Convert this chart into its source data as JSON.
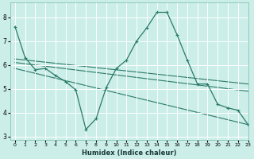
{
  "xlabel": "Humidex (Indice chaleur)",
  "bg_color": "#cceee8",
  "grid_color": "#ffffff",
  "line_color": "#2a7a6a",
  "xlim": [
    -0.5,
    23
  ],
  "ylim": [
    2.85,
    8.6
  ],
  "yticks": [
    3,
    4,
    5,
    6,
    7,
    8
  ],
  "xticks": [
    0,
    1,
    2,
    3,
    4,
    5,
    6,
    7,
    8,
    9,
    10,
    11,
    12,
    13,
    14,
    15,
    16,
    17,
    18,
    19,
    20,
    21,
    22,
    23
  ],
  "series_main": {
    "x": [
      0,
      1,
      2,
      3,
      4,
      5,
      6,
      7,
      8,
      9,
      10,
      11,
      12,
      13,
      14,
      15,
      16,
      17,
      18,
      19,
      20,
      21,
      22,
      23
    ],
    "y": [
      7.6,
      6.3,
      5.8,
      5.85,
      5.55,
      5.3,
      4.95,
      3.3,
      3.75,
      5.05,
      5.85,
      6.2,
      7.0,
      7.55,
      8.2,
      8.2,
      7.25,
      6.2,
      5.2,
      5.2,
      4.35,
      4.2,
      4.1,
      3.5
    ]
  },
  "trend_lines": [
    {
      "x": [
        0,
        23
      ],
      "y": [
        6.25,
        5.2
      ]
    },
    {
      "x": [
        0,
        23
      ],
      "y": [
        6.1,
        4.9
      ]
    },
    {
      "x": [
        0,
        23
      ],
      "y": [
        5.85,
        3.5
      ]
    }
  ]
}
